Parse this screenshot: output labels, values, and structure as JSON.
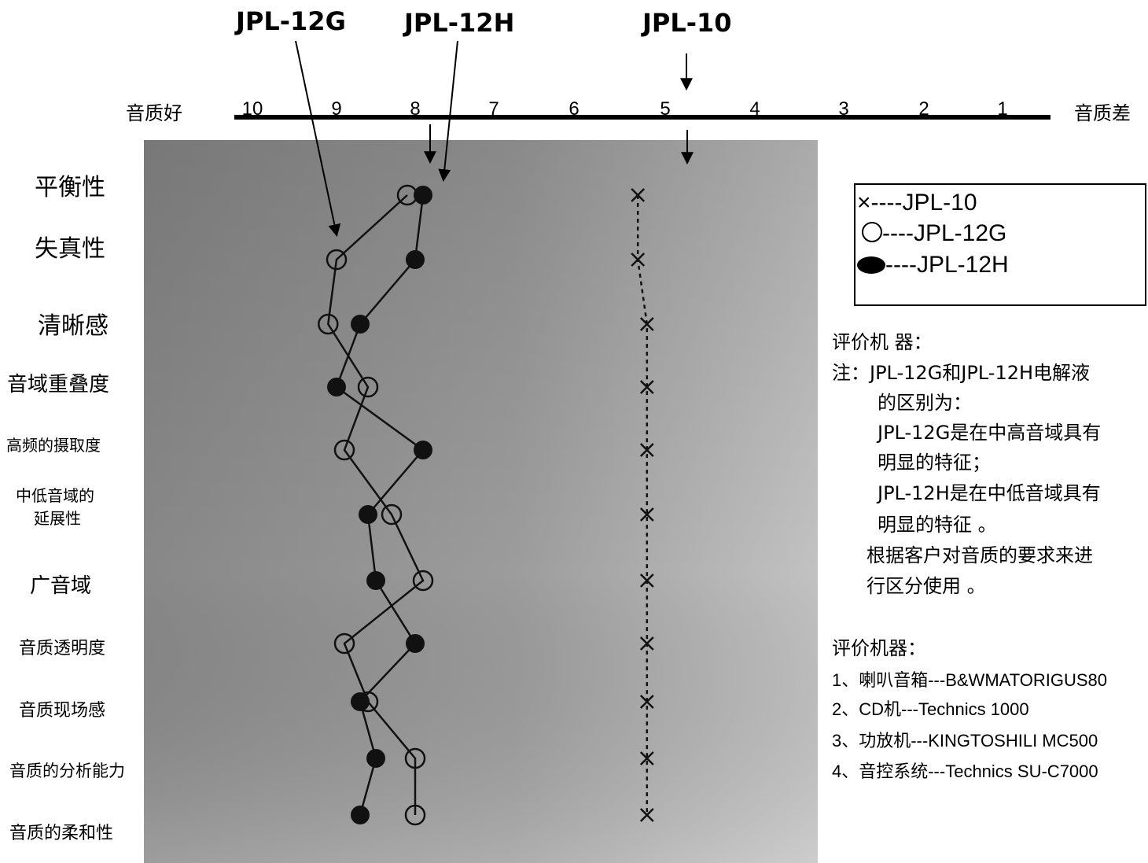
{
  "header": {
    "product_labels": [
      "JPL-12G",
      "JPL-12H",
      "JPL-10"
    ],
    "good_label": "音质好",
    "bad_label": "音质差"
  },
  "categories": {
    "c0": "平衡性",
    "c1": "失真性",
    "c2": "清晰感",
    "c3": "音域重叠度",
    "c4": "高频的摄取度",
    "c5a": "中低音域的",
    "c5b": "延展性",
    "c6": "广音域",
    "c7": "音质透明度",
    "c8": "音质现场感",
    "c9": "音质的分析能力",
    "c10": "音质的柔和性"
  },
  "legend": {
    "x_label": "×----JPL-10",
    "o_label": "----JPL-12G",
    "f_label": "----JPL-12H"
  },
  "notes": {
    "title": "评价机 器：",
    "line1": "注：JPL-12G和JPL-12H电解液",
    "line2": "的区别为：",
    "line3": "JPL-12G是在中高音域具有",
    "line4": "明显的特征；",
    "line5": "JPL-12H是在中低音域具有",
    "line6": "明显的特征 。",
    "line7": "根据客户对音质的要求来进",
    "line8": "行区分使用 。"
  },
  "equipment": {
    "title": "评价机器：",
    "e1": "1、喇叭音箱---B&WMATORIGUS80",
    "e2": "2、CD机---Technics  1000",
    "e3": "3、功放机---KINGTOSHILI MC500",
    "e4": "4、音控系统---Technics SU-C7000"
  },
  "colors": {
    "photo_bg_left": "#8a8a8a",
    "photo_bg_right": "#bdbdbd",
    "mark": "#111111"
  },
  "chart_data": {
    "type": "line",
    "orientation": "horizontal-score",
    "x_axis": {
      "ticks": [
        10,
        9,
        8,
        7,
        6,
        5,
        4,
        3,
        2,
        1
      ],
      "reversed": true,
      "xlim": [
        10,
        1
      ],
      "left_label": "音质好",
      "right_label": "音质差"
    },
    "categories": [
      "平衡性",
      "失真性",
      "清晰感",
      "音域重叠度",
      "高频的摄取度",
      "中低音域的延展性",
      "广音域",
      "音质透明度",
      "音质现场感",
      "音质的分析能力",
      "音质的柔和性"
    ],
    "series": [
      {
        "name": "JPL-10",
        "marker": "x",
        "values": [
          5.3,
          5.3,
          5.2,
          5.2,
          5.2,
          5.2,
          5.2,
          5.2,
          5.2,
          5.2,
          5.2
        ]
      },
      {
        "name": "JPL-12G",
        "marker": "open-circle",
        "values": [
          8.1,
          9.0,
          9.1,
          8.6,
          8.9,
          8.3,
          7.9,
          8.9,
          8.6,
          8.0,
          8.0
        ]
      },
      {
        "name": "JPL-12H",
        "marker": "filled-circle",
        "values": [
          7.9,
          8.0,
          8.7,
          9.0,
          7.9,
          8.6,
          8.5,
          8.0,
          8.7,
          8.5,
          8.7
        ]
      }
    ],
    "grid": false,
    "legend_position": "right"
  }
}
